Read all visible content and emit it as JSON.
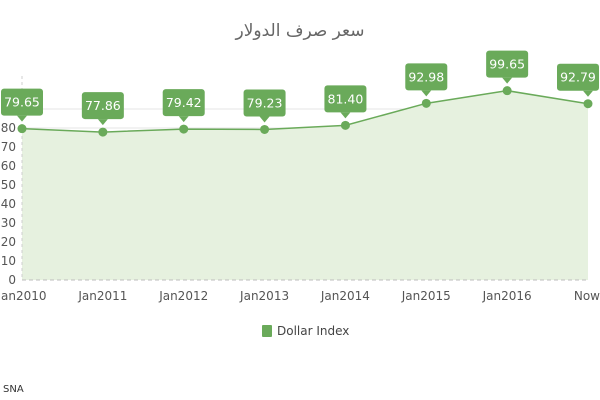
{
  "chart_data": {
    "type": "area",
    "title": "سعر صرف الدولار",
    "xlabel": "",
    "ylabel": "",
    "categories": [
      "Jan2010",
      "Jan2011",
      "Jan2012",
      "Jan2013",
      "Jan2014",
      "Jan2015",
      "Jan2016",
      "Now"
    ],
    "series": [
      {
        "name": "Dollar Index",
        "values": [
          79.65,
          77.86,
          79.42,
          79.23,
          81.4,
          92.98,
          99.65,
          92.79
        ],
        "data_labels": [
          "79.65",
          "77.86",
          "79.42",
          "79.23",
          "81.40",
          "92.98",
          "99.65",
          "92.79"
        ]
      }
    ],
    "ylim": [
      0,
      100
    ],
    "yticks": [
      0,
      10,
      20,
      30,
      40,
      50,
      60,
      70,
      80,
      90
    ],
    "grid": true,
    "legend_position": "bottom"
  },
  "colors": {
    "line": "#6aaa5a",
    "fill": "#e6f1df",
    "marker": "#6aaa5a",
    "label_bg": "#6aaa5a",
    "grid": "#e4e4e4"
  },
  "source": "SNA"
}
